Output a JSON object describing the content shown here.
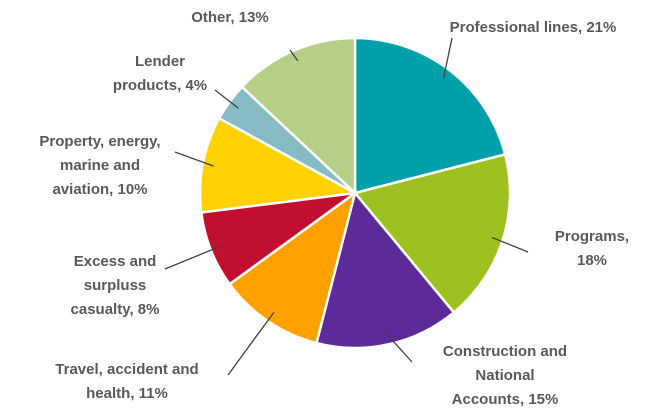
{
  "chart_data": {
    "type": "pie",
    "labels": [
      [
        "Professional lines, 21%"
      ],
      [
        "Programs,",
        "18%"
      ],
      [
        "Construction and",
        "National",
        "Accounts, 15%"
      ],
      [
        "Travel, accident and",
        "health, 11%"
      ],
      [
        "Excess and",
        "surpluss",
        "casualty, 8%"
      ],
      [
        "Property, energy,",
        "marine and",
        "aviation, 10%"
      ],
      [
        "Lender",
        "products, 4%"
      ],
      [
        "Other, 13%"
      ]
    ],
    "values": [
      21,
      18,
      15,
      11,
      8,
      10,
      4,
      13
    ],
    "colors": [
      "#00a0a8",
      "#9dc11f",
      "#5c2a99",
      "#ffa100",
      "#c1102f",
      "#ffd200",
      "#86bbc3",
      "#b6cf87"
    ]
  }
}
